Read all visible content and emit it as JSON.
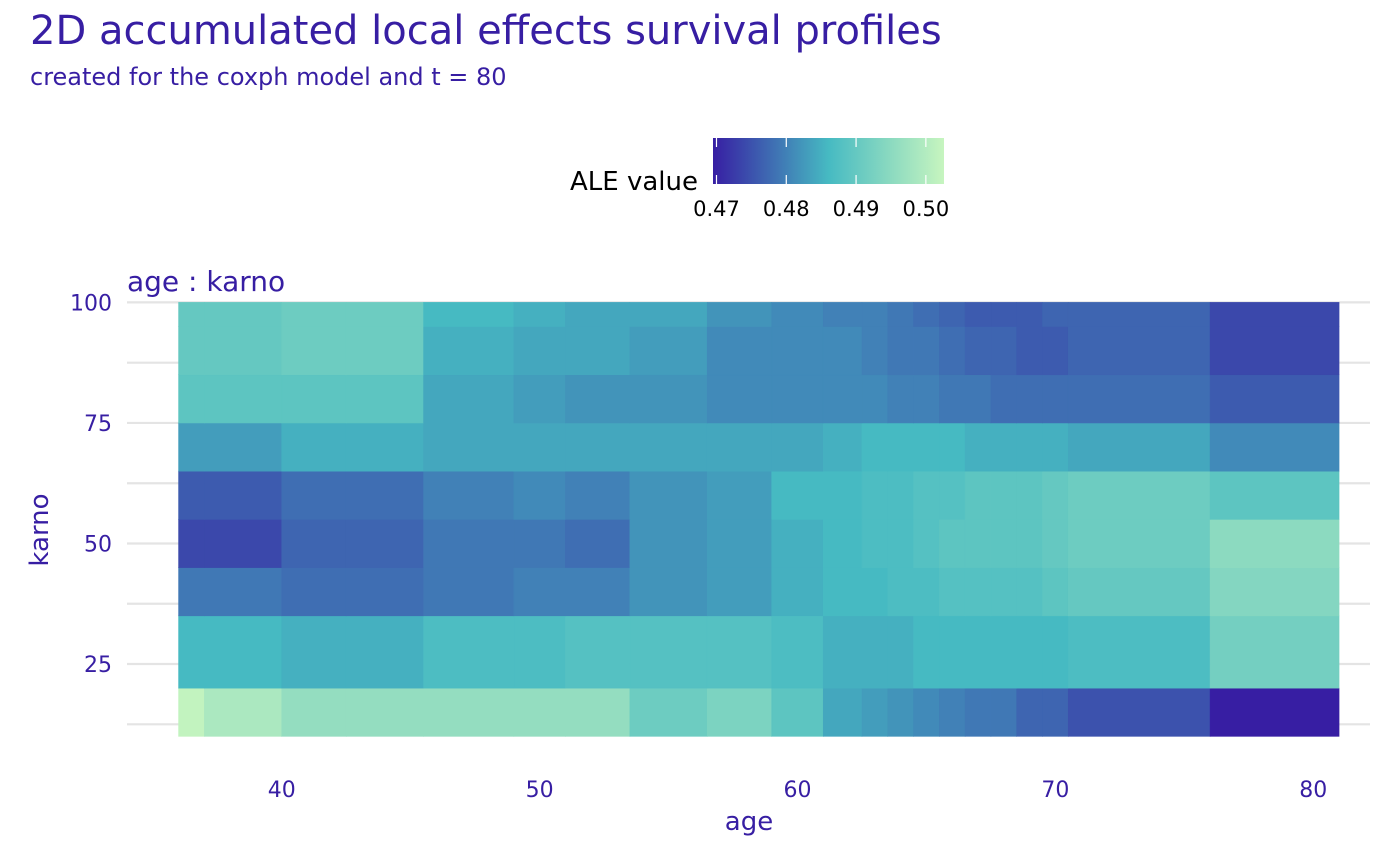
{
  "title": "2D accumulated local effects survival profiles",
  "subtitle": "created for the coxph model and t = 80",
  "legend": {
    "title": "ALE value",
    "ticks": [
      "0.47",
      "0.48",
      "0.49",
      "0.50"
    ],
    "tick_values": [
      0.47,
      0.48,
      0.49,
      0.5
    ],
    "range": [
      0.4695,
      0.5026
    ],
    "gradient": [
      "#371ea3",
      "#46bac2",
      "#c7f5bf"
    ]
  },
  "chart_data": {
    "type": "heatmap",
    "panel_title": "age : karno",
    "xlabel": "age",
    "ylabel": "karno",
    "xlim": [
      34,
      82.2
    ],
    "ylim": [
      8,
      100.5
    ],
    "x_ticks": [
      40,
      50,
      60,
      70,
      80
    ],
    "y_ticks": [
      25,
      50,
      75,
      100
    ],
    "grid": true,
    "legend_position": "top",
    "x_breaks": [
      36,
      37,
      40,
      42.5,
      45.5,
      49,
      51,
      53.5,
      56.5,
      59,
      61,
      62.5,
      63.5,
      64.5,
      65.5,
      66.5,
      67.5,
      68.5,
      69.5,
      70.5,
      76,
      81
    ],
    "y_breaks": [
      10,
      20,
      35,
      45,
      55,
      65,
      75,
      85,
      95,
      100
    ],
    "values": [
      [
        0.502,
        0.499,
        0.496,
        0.496,
        0.496,
        0.496,
        0.496,
        0.491,
        0.493,
        0.489,
        0.484,
        0.483,
        0.482,
        0.481,
        0.48,
        0.479,
        0.479,
        0.477,
        0.477,
        0.475,
        0.4695
      ],
      [
        0.486,
        0.486,
        0.485,
        0.485,
        0.487,
        0.487,
        0.488,
        0.488,
        0.488,
        0.487,
        0.485,
        0.485,
        0.485,
        0.486,
        0.486,
        0.486,
        0.486,
        0.486,
        0.486,
        0.487,
        0.492
      ],
      [
        0.479,
        0.479,
        0.478,
        0.478,
        0.479,
        0.48,
        0.48,
        0.482,
        0.483,
        0.485,
        0.486,
        0.486,
        0.487,
        0.487,
        0.488,
        0.488,
        0.488,
        0.488,
        0.489,
        0.49,
        0.494
      ],
      [
        0.474,
        0.474,
        0.477,
        0.477,
        0.479,
        0.479,
        0.478,
        0.482,
        0.483,
        0.485,
        0.486,
        0.487,
        0.487,
        0.488,
        0.489,
        0.489,
        0.489,
        0.489,
        0.49,
        0.491,
        0.495
      ],
      [
        0.476,
        0.476,
        0.478,
        0.478,
        0.48,
        0.481,
        0.48,
        0.482,
        0.483,
        0.486,
        0.486,
        0.487,
        0.487,
        0.488,
        0.488,
        0.489,
        0.489,
        0.489,
        0.49,
        0.491,
        0.489
      ],
      [
        0.483,
        0.483,
        0.485,
        0.485,
        0.484,
        0.484,
        0.484,
        0.484,
        0.484,
        0.484,
        0.485,
        0.486,
        0.486,
        0.486,
        0.486,
        0.485,
        0.485,
        0.485,
        0.485,
        0.484,
        0.481
      ],
      [
        0.489,
        0.489,
        0.489,
        0.489,
        0.484,
        0.483,
        0.482,
        0.482,
        0.481,
        0.481,
        0.481,
        0.481,
        0.48,
        0.48,
        0.479,
        0.479,
        0.478,
        0.478,
        0.478,
        0.478,
        0.476
      ],
      [
        0.49,
        0.49,
        0.491,
        0.491,
        0.485,
        0.484,
        0.484,
        0.483,
        0.481,
        0.481,
        0.481,
        0.48,
        0.479,
        0.479,
        0.478,
        0.477,
        0.477,
        0.476,
        0.476,
        0.477,
        0.474
      ],
      [
        0.49,
        0.49,
        0.491,
        0.491,
        0.486,
        0.485,
        0.484,
        0.484,
        0.482,
        0.481,
        0.48,
        0.48,
        0.479,
        0.478,
        0.477,
        0.476,
        0.476,
        0.476,
        0.477,
        0.477,
        0.474
      ]
    ]
  }
}
